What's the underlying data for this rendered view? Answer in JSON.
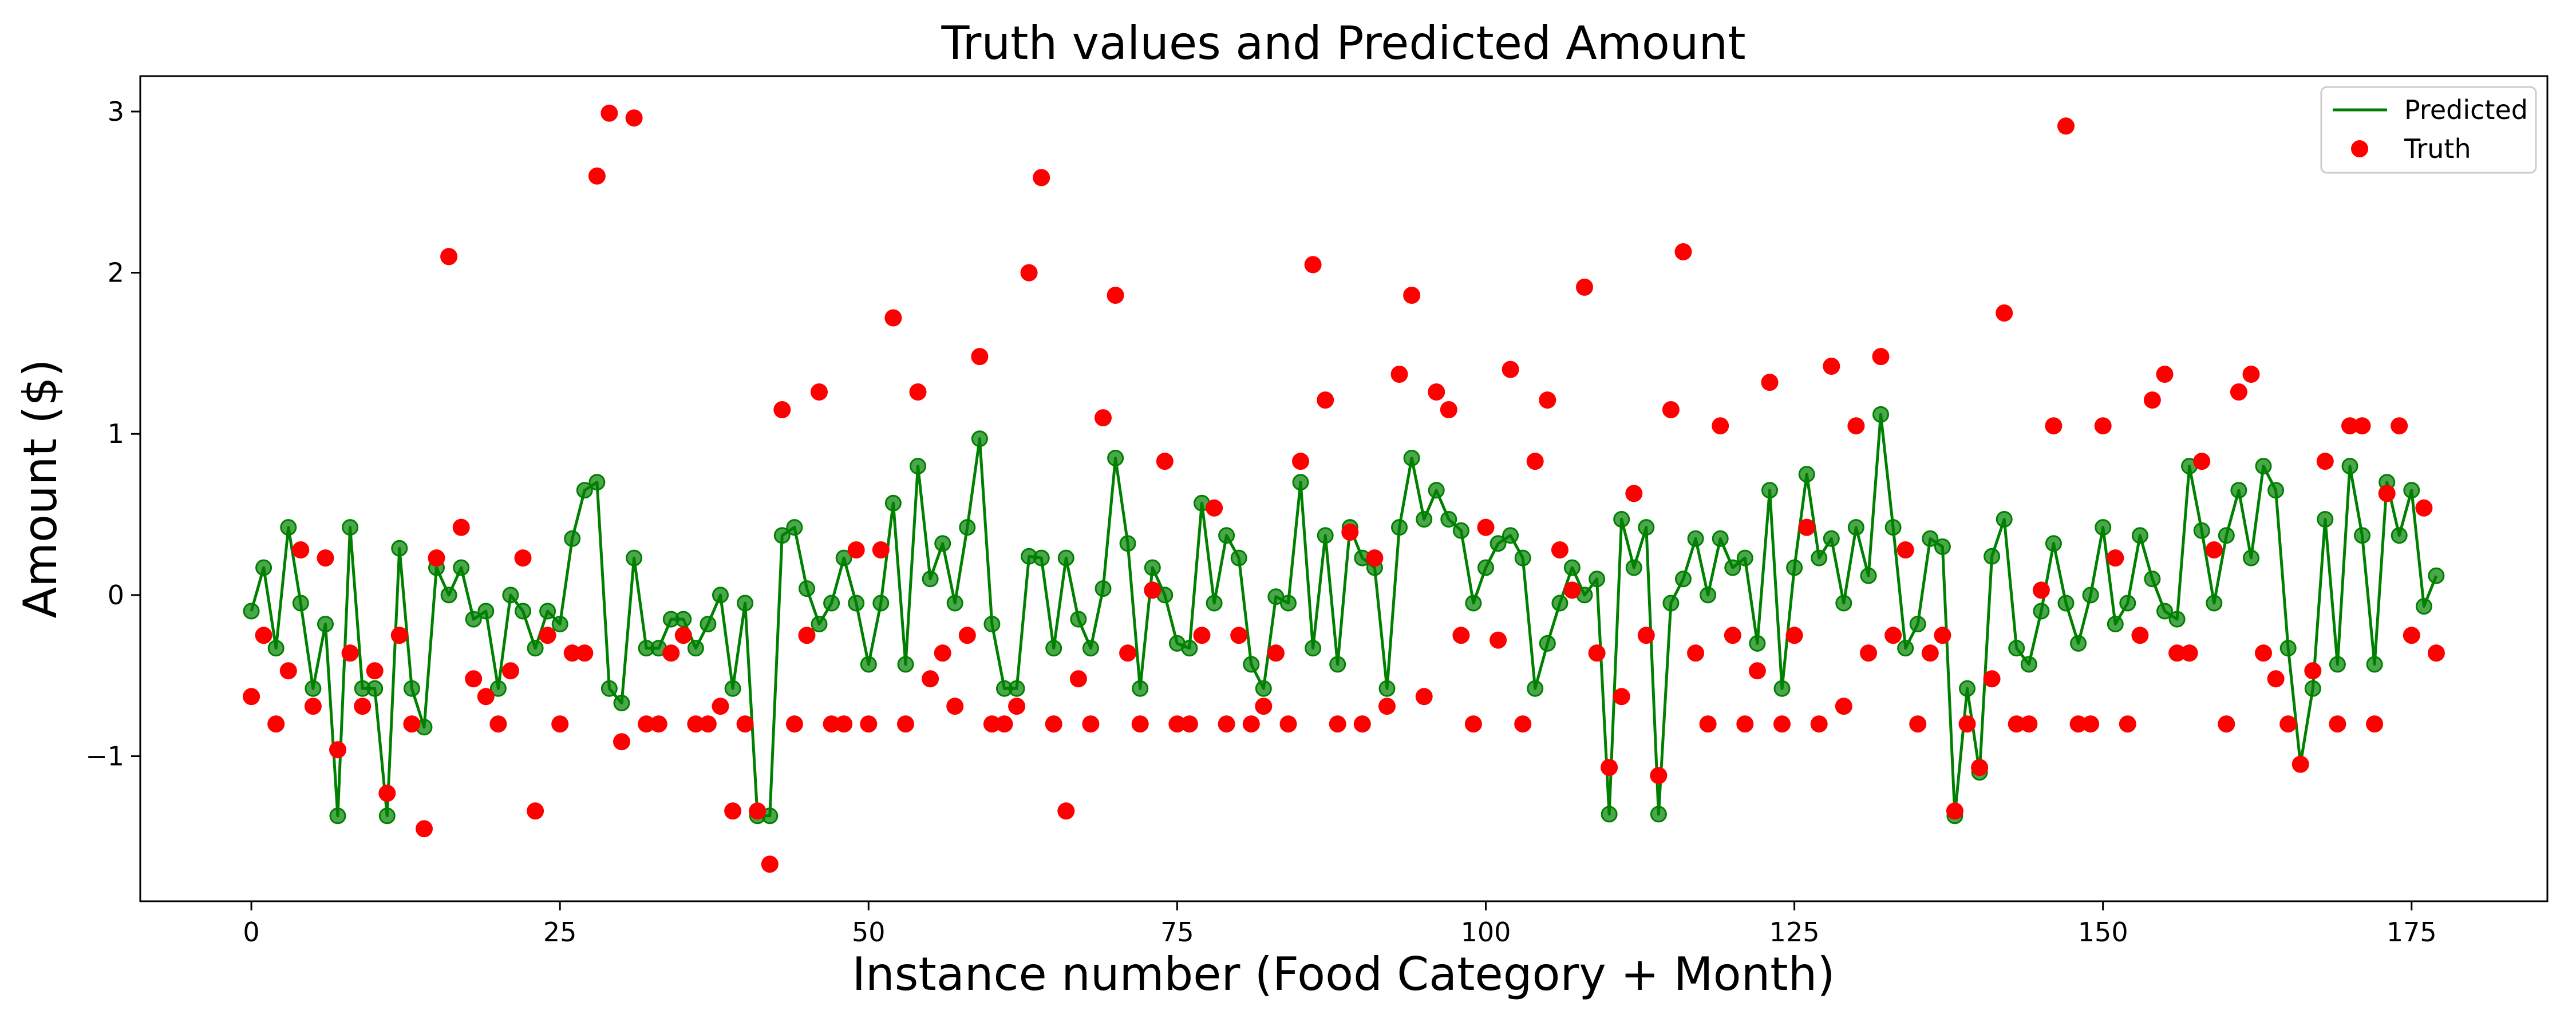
{
  "chart_data": {
    "type": "line",
    "title": "Truth values and Predicted Amount",
    "xlabel": "Instance number (Food Category + Month)",
    "ylabel": "Amount ($)",
    "xlim": [
      -9,
      186
    ],
    "ylim": [
      -1.9,
      3.22
    ],
    "xticks": [
      0,
      25,
      50,
      75,
      100,
      125,
      150,
      175
    ],
    "xtick_labels": [
      "0",
      "25",
      "50",
      "75",
      "100",
      "125",
      "150",
      "175"
    ],
    "yticks": [
      -1,
      0,
      1,
      2,
      3
    ],
    "ytick_labels": [
      "−1",
      "0",
      "1",
      "2",
      "3"
    ],
    "legend": {
      "placement": "top-right",
      "entries": [
        "Predicted",
        "Truth"
      ]
    },
    "grid": false,
    "colors": {
      "predicted": "#008000",
      "truth": "#ff0000"
    },
    "series": [
      {
        "name": "Predicted",
        "kind": "line",
        "values": [
          -0.1,
          0.17,
          -0.33,
          0.42,
          -0.05,
          -0.58,
          -0.18,
          -1.37,
          0.42,
          -0.58,
          -0.58,
          -1.37,
          0.29,
          -0.58,
          -0.82,
          0.17,
          0.0,
          0.17,
          -0.15,
          -0.1,
          -0.58,
          0.0,
          -0.1,
          -0.33,
          -0.1,
          -0.18,
          0.35,
          0.65,
          0.7,
          -0.58,
          -0.67,
          0.23,
          -0.33,
          -0.33,
          -0.15,
          -0.15,
          -0.33,
          -0.18,
          0.0,
          -0.58,
          -0.05,
          -1.37,
          -1.37,
          0.37,
          0.42,
          0.04,
          -0.18,
          -0.05,
          0.23,
          -0.05,
          -0.43,
          -0.05,
          0.57,
          -0.43,
          0.8,
          0.1,
          0.32,
          -0.05,
          0.42,
          0.97,
          -0.18,
          -0.58,
          -0.58,
          0.24,
          0.23,
          -0.33,
          0.23,
          -0.15,
          -0.33,
          0.04,
          0.85,
          0.32,
          -0.58,
          0.17,
          0.0,
          -0.3,
          -0.33,
          0.57,
          -0.05,
          0.37,
          0.23,
          -0.43,
          -0.58,
          -0.01,
          -0.05,
          0.7,
          -0.33,
          0.37,
          -0.43,
          0.42,
          0.23,
          0.17,
          -0.58,
          0.42,
          0.85,
          0.47,
          0.65,
          0.47,
          0.4,
          -0.05,
          0.17,
          0.32,
          0.37,
          0.23,
          -0.58,
          -0.3,
          -0.05,
          0.17,
          0.0,
          0.1,
          -1.36,
          0.47,
          0.17,
          0.42,
          -1.36,
          -0.05,
          0.1,
          0.35,
          0.0,
          0.35,
          0.17,
          0.23,
          -0.3,
          0.65,
          -0.58,
          0.17,
          0.75,
          0.23,
          0.35,
          -0.05,
          0.42,
          0.12,
          1.12,
          0.42,
          -0.33,
          -0.18,
          0.35,
          0.3,
          -1.37,
          -0.58,
          -1.1,
          0.24,
          0.47,
          -0.33,
          -0.43,
          -0.1,
          0.32,
          -0.05,
          -0.3,
          0.0,
          0.42,
          -0.18,
          -0.05,
          0.37,
          0.1,
          -0.1,
          -0.15,
          0.8,
          0.4,
          -0.05,
          0.37,
          0.65,
          0.23,
          0.8,
          0.65,
          -0.33,
          -1.05,
          -0.58,
          0.47,
          -0.43,
          0.8,
          0.37,
          -0.43,
          0.7,
          0.37,
          0.65,
          -0.07,
          0.12
        ]
      },
      {
        "name": "Truth",
        "kind": "scatter",
        "values": [
          -0.63,
          -0.25,
          -0.8,
          -0.47,
          0.28,
          -0.69,
          0.23,
          -0.96,
          -0.36,
          -0.69,
          -0.47,
          -1.23,
          -0.25,
          -0.8,
          -1.45,
          0.23,
          2.1,
          0.42,
          -0.52,
          -0.63,
          -0.8,
          -0.47,
          0.23,
          -1.34,
          -0.25,
          -0.8,
          -0.36,
          -0.36,
          2.6,
          2.99,
          -0.91,
          2.96,
          -0.8,
          -0.8,
          -0.36,
          -0.25,
          -0.8,
          -0.8,
          -0.69,
          -1.34,
          -0.8,
          -1.34,
          -1.67,
          1.15,
          -0.8,
          -0.25,
          1.26,
          -0.8,
          -0.8,
          0.28,
          -0.8,
          0.28,
          1.72,
          -0.8,
          1.26,
          -0.52,
          -0.36,
          -0.69,
          -0.25,
          1.48,
          -0.8,
          -0.8,
          -0.69,
          2.0,
          2.59,
          -0.8,
          -1.34,
          -0.52,
          -0.8,
          1.1,
          1.86,
          -0.36,
          -0.8,
          0.03,
          0.83,
          -0.8,
          -0.8,
          -0.25,
          0.54,
          -0.8,
          -0.25,
          -0.8,
          -0.69,
          -0.36,
          -0.8,
          0.83,
          2.05,
          1.21,
          -0.8,
          0.39,
          -0.8,
          0.23,
          -0.69,
          1.37,
          1.86,
          -0.63,
          1.26,
          1.15,
          -0.25,
          -0.8,
          0.42,
          -0.28,
          1.4,
          -0.8,
          0.83,
          1.21,
          0.28,
          0.03,
          1.91,
          -0.36,
          -1.07,
          -0.63,
          0.63,
          -0.25,
          -1.12,
          1.15,
          2.13,
          -0.36,
          -0.8,
          1.05,
          -0.25,
          -0.8,
          -0.47,
          1.32,
          -0.8,
          -0.25,
          0.42,
          -0.8,
          1.42,
          -0.69,
          1.05,
          -0.36,
          1.48,
          -0.25,
          0.28,
          -0.8,
          -0.36,
          -0.25,
          -1.34,
          -0.8,
          -1.07,
          -0.52,
          1.75,
          -0.8,
          -0.8,
          0.03,
          1.05,
          2.91,
          -0.8,
          -0.8,
          1.05,
          0.23,
          -0.8,
          -0.25,
          1.21,
          1.37,
          -0.36,
          -0.36,
          0.83,
          0.28,
          -0.8,
          1.26,
          1.37,
          -0.36,
          -0.52,
          -0.8,
          -1.05,
          -0.47,
          0.83,
          -0.8,
          1.05,
          1.05,
          -0.8,
          0.63,
          1.05,
          -0.25,
          0.54,
          -0.36
        ]
      }
    ]
  }
}
